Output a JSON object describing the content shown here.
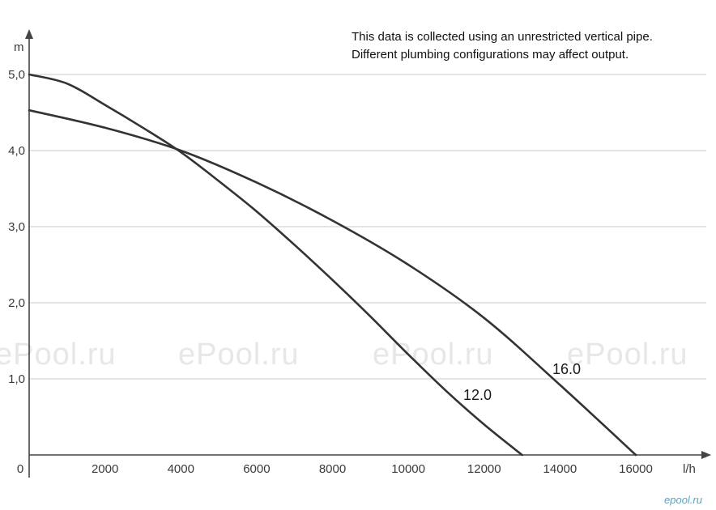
{
  "chart_data": {
    "type": "line",
    "xlabel": "l/h",
    "ylabel": "m",
    "xlim": [
      0,
      18000
    ],
    "ylim": [
      0,
      5.0
    ],
    "x_ticks": [
      "0",
      "2000",
      "4000",
      "6000",
      "8000",
      "10000",
      "12000",
      "14000",
      "16000"
    ],
    "y_ticks": [
      "1,0",
      "2,0",
      "3,0",
      "4,0",
      "5,0"
    ],
    "y_tick_values": [
      1.0,
      2.0,
      3.0,
      4.0,
      5.0
    ],
    "x_tick_values": [
      0,
      2000,
      4000,
      6000,
      8000,
      10000,
      12000,
      14000,
      16000
    ],
    "grid": "horizontal",
    "annotations": [
      "This data is collected using an unrestricted vertical pipe.",
      "Different plumbing configurations may affect output."
    ],
    "series": [
      {
        "name": "12.0",
        "x": [
          0,
          1000,
          2000,
          3000,
          4000,
          5000,
          6000,
          7000,
          8000,
          9000,
          10000,
          11000,
          12000,
          13000
        ],
        "y": [
          5.0,
          4.88,
          4.6,
          4.3,
          3.98,
          3.6,
          3.2,
          2.76,
          2.3,
          1.82,
          1.32,
          0.84,
          0.4,
          0.0
        ]
      },
      {
        "name": "16.0",
        "x": [
          0,
          2000,
          4000,
          6000,
          8000,
          10000,
          12000,
          14000,
          16000
        ],
        "y": [
          4.53,
          4.3,
          4.0,
          3.58,
          3.08,
          2.5,
          1.8,
          0.92,
          0.0
        ]
      }
    ],
    "watermarks": [
      "ePool.ru",
      "ePool.ru",
      "ePool.ru",
      "ePool.ru"
    ],
    "corner_logo": "epool.ru",
    "colors": {
      "line": "#333333",
      "grid": "#c8c8c8",
      "axis": "#444444"
    }
  }
}
